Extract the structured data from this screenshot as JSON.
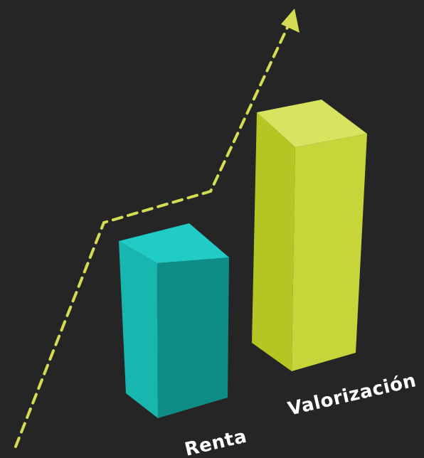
{
  "chart_data": {
    "type": "bar",
    "style": "3d",
    "categories": [
      "Renta",
      "Valorización"
    ],
    "values": [
      2.3,
      3.5
    ],
    "trend": "increasing",
    "grid": false,
    "legend": "none"
  },
  "colors": {
    "background": "#262525",
    "renta_front": "#17b7b0",
    "renta_side": "#0e8c86",
    "renta_top": "#21ccc6",
    "valor_front": "#b5c524",
    "valor_side": "#c7d43a",
    "valor_top": "#d8e35f",
    "arrow": "#d4dc52",
    "label": "#ffffff"
  }
}
